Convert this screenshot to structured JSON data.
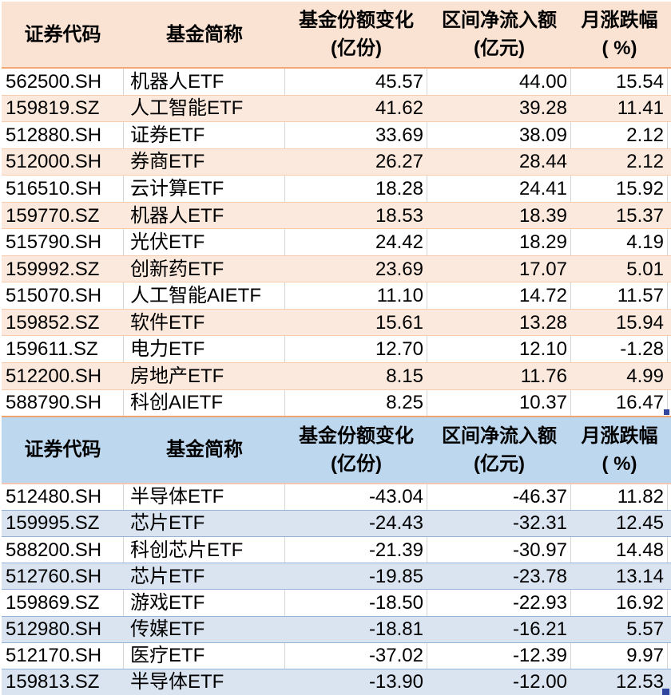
{
  "sheet": {
    "background_color": "#FFFFFF",
    "gridline_color": "#D6D6D6",
    "selection_handle_color": "#31479F"
  },
  "tables": [
    {
      "id": "share-increase-table",
      "theme": {
        "header_bg": "#FBE3D3",
        "stripe_bg": "#FCE9DD",
        "row_border": "#F8CBAD",
        "header_border": "#F2A873",
        "bottom_border": "#F0A470"
      },
      "columns": [
        {
          "label": "证券代码",
          "sub": ""
        },
        {
          "label": "基金简称",
          "sub": ""
        },
        {
          "label": "基金份额变化",
          "sub": "(亿份)"
        },
        {
          "label": "区间净流入额",
          "sub": "(亿元)"
        },
        {
          "label": "月涨跌幅",
          "sub": "( %)"
        }
      ],
      "rows": [
        [
          "562500.SH",
          "机器人ETF",
          "45.57",
          "44.00",
          "15.54"
        ],
        [
          "159819.SZ",
          "人工智能ETF",
          "41.62",
          "39.28",
          "11.41"
        ],
        [
          "512880.SH",
          "证券ETF",
          "33.69",
          "38.09",
          "2.12"
        ],
        [
          "512000.SH",
          "券商ETF",
          "26.27",
          "28.44",
          "2.12"
        ],
        [
          "516510.SH",
          "云计算ETF",
          "18.28",
          "24.41",
          "15.92"
        ],
        [
          "159770.SZ",
          "机器人ETF",
          "18.53",
          "18.39",
          "15.37"
        ],
        [
          "515790.SH",
          "光伏ETF",
          "24.42",
          "18.29",
          "4.19"
        ],
        [
          "159992.SZ",
          "创新药ETF",
          "23.69",
          "17.07",
          "5.01"
        ],
        [
          "515070.SH",
          "人工智能AIETF",
          "11.10",
          "14.72",
          "11.57"
        ],
        [
          "159852.SZ",
          "软件ETF",
          "15.61",
          "13.28",
          "15.94"
        ],
        [
          "159611.SZ",
          "电力ETF",
          "12.70",
          "12.10",
          "-1.28"
        ],
        [
          "512200.SH",
          "房地产ETF",
          "8.15",
          "11.76",
          "4.99"
        ],
        [
          "588790.SH",
          "科创AIETF",
          "8.25",
          "10.37",
          "16.47"
        ]
      ]
    },
    {
      "id": "share-decrease-table",
      "theme": {
        "header_bg": "#BDD7EE",
        "stripe_bg": "#DAE3F0",
        "row_border": "#94B3D8",
        "header_border": "#F5C6B4",
        "bottom_border": "#94B3D8"
      },
      "columns": [
        {
          "label": "证券代码",
          "sub": ""
        },
        {
          "label": "基金简称",
          "sub": ""
        },
        {
          "label": "基金份额变化",
          "sub": "(亿份)"
        },
        {
          "label": "区间净流入额",
          "sub": "(亿元)"
        },
        {
          "label": "月涨跌幅",
          "sub": "( %)"
        }
      ],
      "rows": [
        [
          "512480.SH",
          "半导体ETF",
          "-43.04",
          "-46.37",
          "11.82"
        ],
        [
          "159995.SZ",
          "芯片ETF",
          "-24.43",
          "-32.31",
          "12.45"
        ],
        [
          "588200.SH",
          "科创芯片ETF",
          "-21.39",
          "-30.97",
          "14.48"
        ],
        [
          "512760.SH",
          "芯片ETF",
          "-19.85",
          "-23.78",
          "13.14"
        ],
        [
          "159869.SZ",
          "游戏ETF",
          "-18.50",
          "-22.93",
          "16.92"
        ],
        [
          "512980.SH",
          "传媒ETF",
          "-18.81",
          "-16.21",
          "5.57"
        ],
        [
          "512170.SH",
          "医疗ETF",
          "-37.02",
          "-12.39",
          "9.97"
        ],
        [
          "159813.SZ",
          "半导体ETF",
          "-13.90",
          "-12.00",
          "12.53"
        ]
      ]
    }
  ]
}
